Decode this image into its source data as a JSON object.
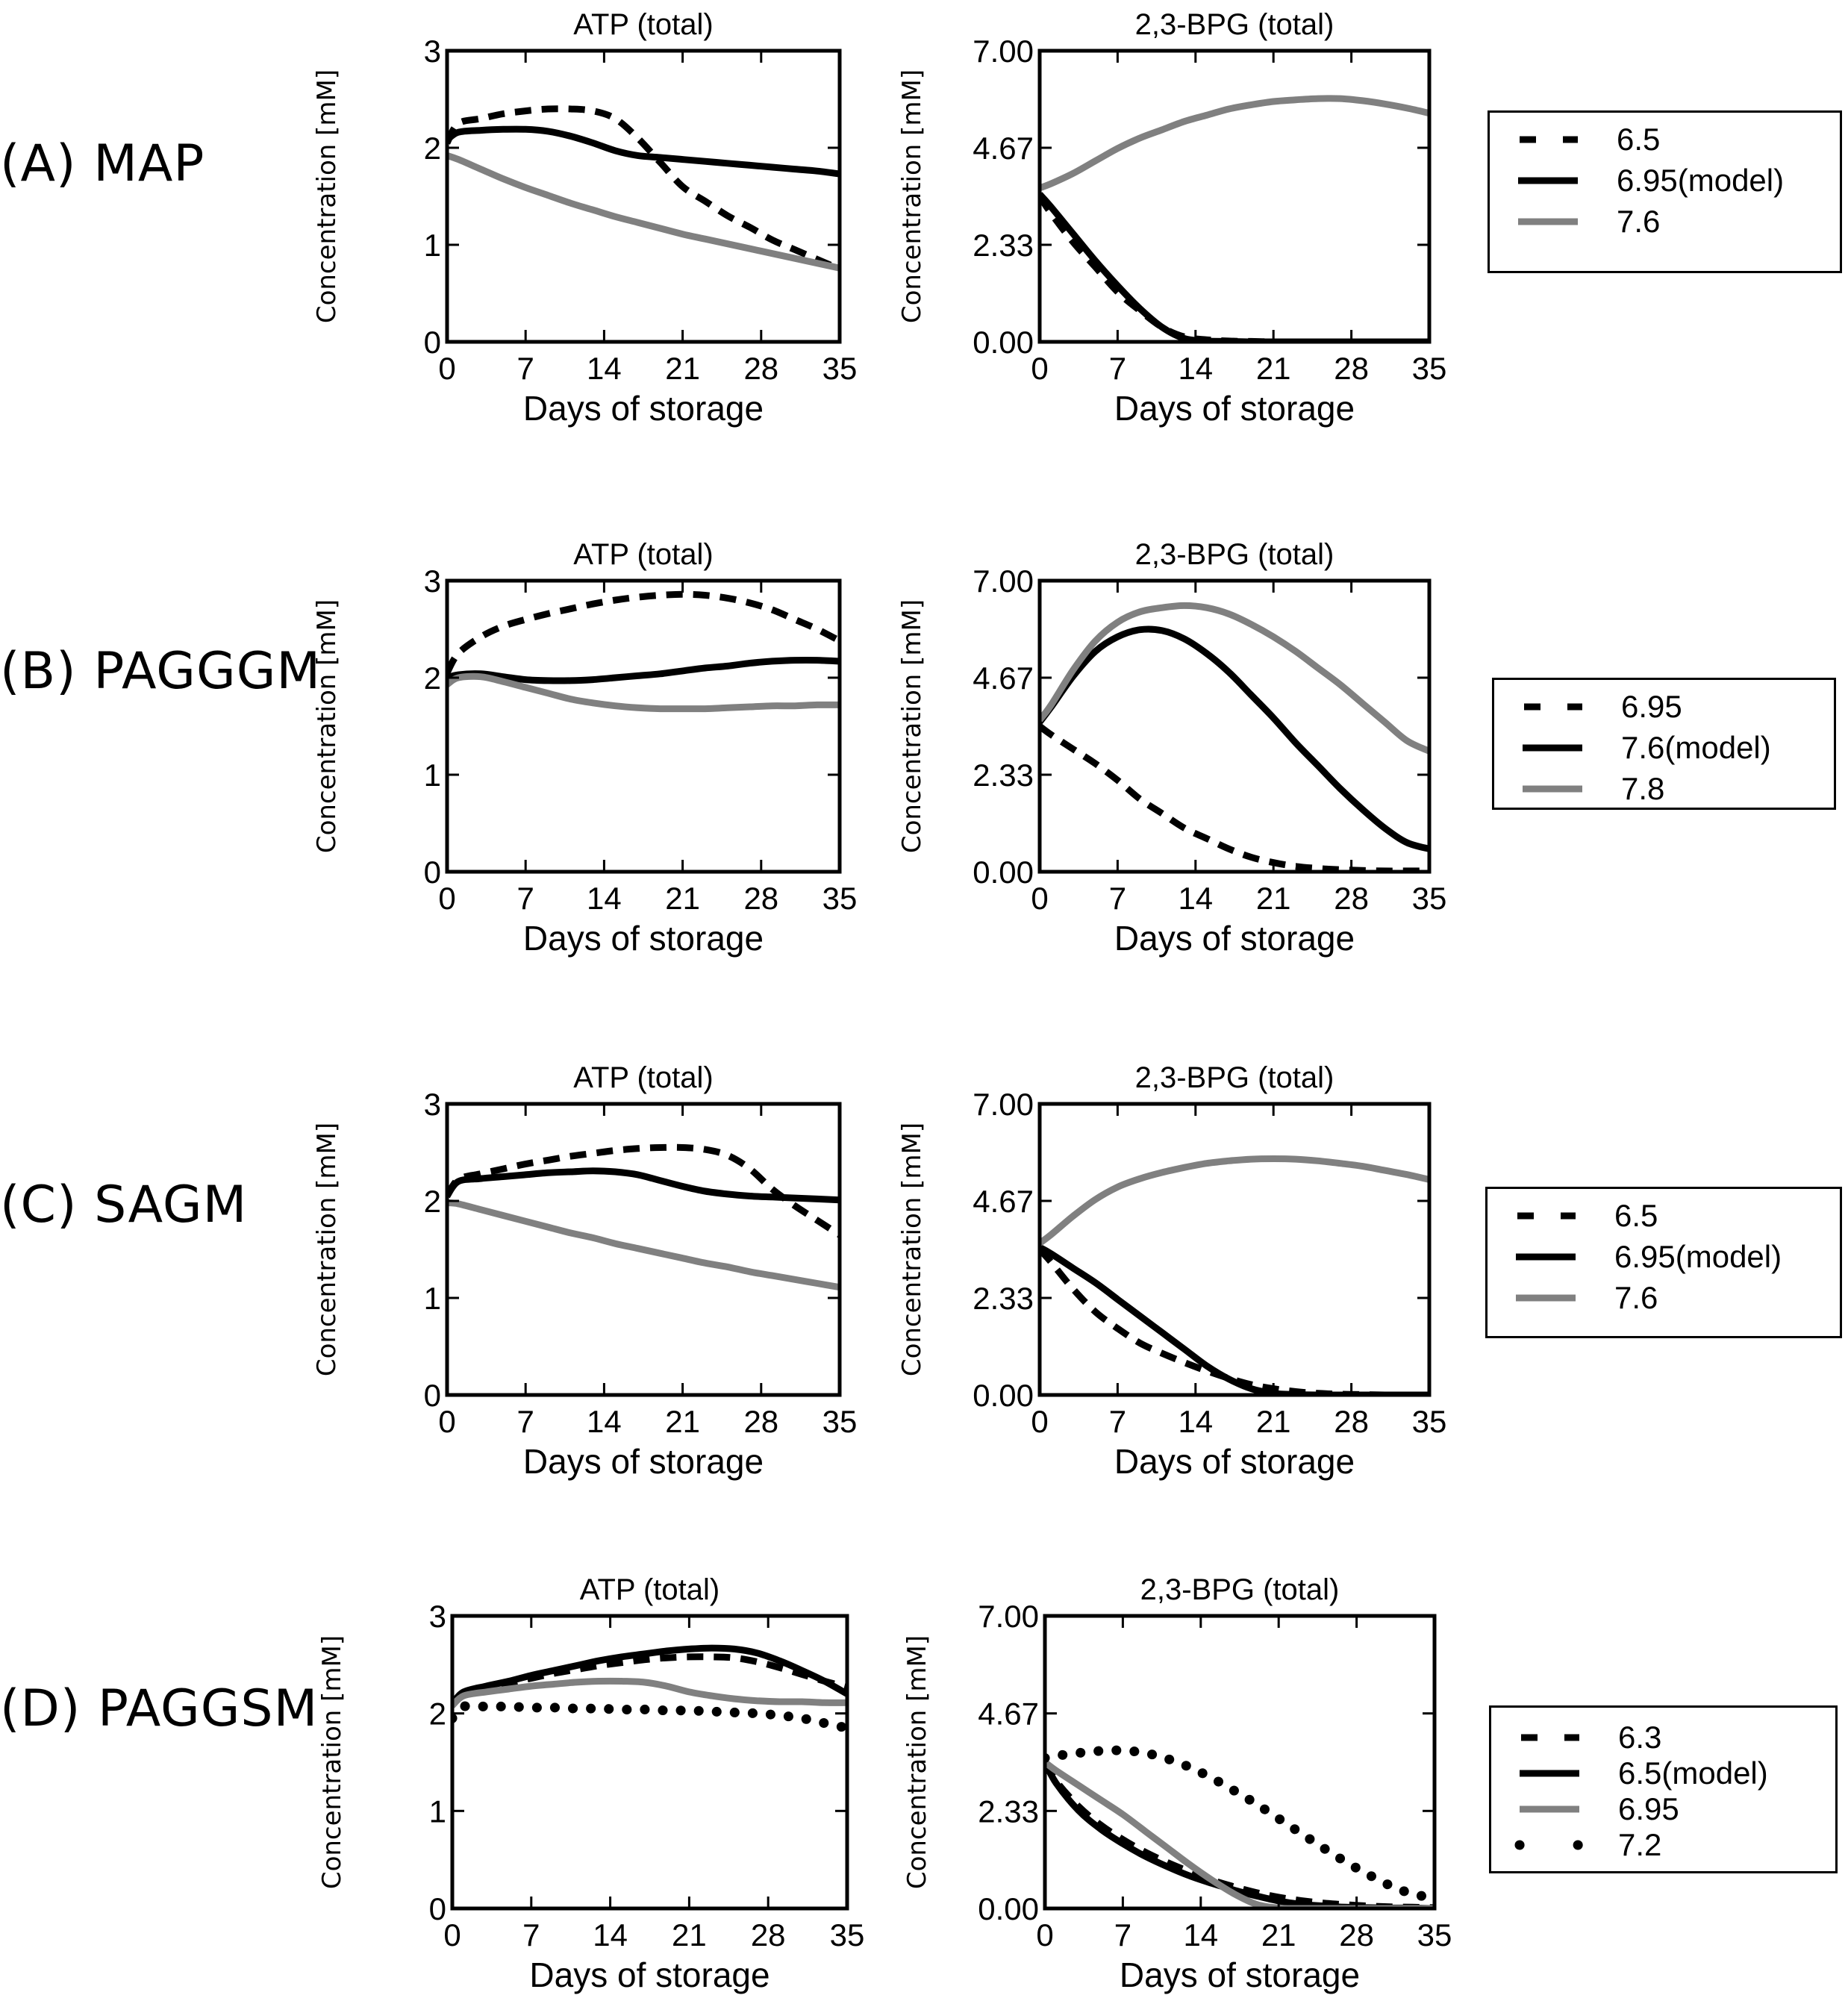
{
  "colors": {
    "black": "#000000",
    "gray": "#808080"
  },
  "chart_data": [
    {
      "type": "line",
      "panel": "A",
      "row_label": "(A) MAP",
      "title": "ATP (total)",
      "xlabel": "Days of storage",
      "ylabel": "Concentration [mM]",
      "xlim": [
        0,
        35
      ],
      "ylim": [
        0,
        3
      ],
      "xticks": [
        "0",
        "7",
        "14",
        "21",
        "28",
        "35"
      ],
      "yticks": [
        "0",
        "1",
        "2",
        "3"
      ],
      "x": [
        0,
        1,
        3,
        5,
        7,
        9,
        11,
        13,
        15,
        17,
        19,
        21,
        23,
        25,
        27,
        29,
        31,
        33,
        35
      ],
      "series": [
        {
          "name": "6.5",
          "style": "dashed",
          "color": "#000000",
          "values": [
            2.05,
            2.25,
            2.3,
            2.35,
            2.38,
            2.4,
            2.4,
            2.38,
            2.3,
            2.1,
            1.85,
            1.6,
            1.45,
            1.3,
            1.18,
            1.05,
            0.95,
            0.85,
            0.75
          ]
        },
        {
          "name": "6.95(model)",
          "style": "solid",
          "color": "#000000",
          "values": [
            2.08,
            2.16,
            2.18,
            2.19,
            2.19,
            2.17,
            2.12,
            2.05,
            1.97,
            1.92,
            1.9,
            1.88,
            1.86,
            1.84,
            1.82,
            1.8,
            1.78,
            1.76,
            1.73
          ]
        },
        {
          "name": "7.6",
          "style": "solid",
          "color": "#808080",
          "values": [
            1.92,
            1.88,
            1.78,
            1.68,
            1.59,
            1.51,
            1.43,
            1.36,
            1.29,
            1.23,
            1.17,
            1.11,
            1.06,
            1.01,
            0.96,
            0.91,
            0.86,
            0.81,
            0.76
          ]
        }
      ]
    },
    {
      "type": "line",
      "panel": "A",
      "title": "2,3-BPG (total)",
      "xlabel": "Days of storage",
      "ylabel": "Concentration [mM]",
      "xlim": [
        0,
        35
      ],
      "ylim": [
        0,
        7
      ],
      "xticks": [
        "0",
        "7",
        "14",
        "21",
        "28",
        "35"
      ],
      "yticks": [
        "0.00",
        "2.33",
        "4.67",
        "7.00"
      ],
      "x": [
        0,
        1,
        3,
        5,
        7,
        9,
        11,
        13,
        15,
        17,
        19,
        21,
        23,
        25,
        27,
        29,
        31,
        33,
        35
      ],
      "legend": [
        "6.5",
        "6.95(model)",
        "7.6"
      ],
      "series": [
        {
          "name": "6.5",
          "style": "dashed",
          "color": "#000000",
          "values": [
            3.5,
            3.1,
            2.4,
            1.8,
            1.2,
            0.75,
            0.35,
            0.12,
            0.05,
            0.02,
            0.01,
            0,
            0,
            0,
            0,
            0,
            0,
            0,
            0
          ]
        },
        {
          "name": "6.95(model)",
          "style": "solid",
          "color": "#000000",
          "values": [
            3.55,
            3.25,
            2.6,
            1.95,
            1.35,
            0.8,
            0.35,
            0.08,
            0.02,
            0.01,
            0,
            0,
            0,
            0,
            0,
            0,
            0,
            0,
            0
          ]
        },
        {
          "name": "7.6",
          "style": "solid",
          "color": "#808080",
          "values": [
            3.7,
            3.8,
            4.05,
            4.35,
            4.65,
            4.9,
            5.1,
            5.3,
            5.45,
            5.6,
            5.7,
            5.78,
            5.82,
            5.85,
            5.85,
            5.8,
            5.72,
            5.62,
            5.5
          ]
        }
      ]
    },
    {
      "type": "line",
      "panel": "B",
      "row_label": "(B) PAGGGM",
      "title": "ATP (total)",
      "xlabel": "Days of storage",
      "ylabel": "Concentration [mM]",
      "xlim": [
        0,
        35
      ],
      "ylim": [
        0,
        3
      ],
      "xticks": [
        "0",
        "7",
        "14",
        "21",
        "28",
        "35"
      ],
      "yticks": [
        "0",
        "1",
        "2",
        "3"
      ],
      "x": [
        0,
        1,
        3,
        5,
        7,
        9,
        11,
        13,
        15,
        17,
        19,
        21,
        23,
        25,
        27,
        29,
        31,
        33,
        35
      ],
      "series": [
        {
          "name": "6.95",
          "style": "dashed",
          "color": "#000000",
          "values": [
            2.05,
            2.25,
            2.42,
            2.53,
            2.6,
            2.66,
            2.71,
            2.76,
            2.8,
            2.83,
            2.85,
            2.86,
            2.85,
            2.82,
            2.77,
            2.7,
            2.6,
            2.5,
            2.38
          ]
        },
        {
          "name": "7.6(model)",
          "style": "solid",
          "color": "#000000",
          "values": [
            2.0,
            2.03,
            2.04,
            2.01,
            1.98,
            1.97,
            1.97,
            1.98,
            2.0,
            2.02,
            2.04,
            2.07,
            2.1,
            2.12,
            2.15,
            2.17,
            2.18,
            2.18,
            2.17
          ]
        },
        {
          "name": "7.8",
          "style": "solid",
          "color": "#808080",
          "values": [
            1.93,
            2.0,
            2.01,
            1.96,
            1.9,
            1.84,
            1.78,
            1.74,
            1.71,
            1.69,
            1.68,
            1.68,
            1.68,
            1.69,
            1.7,
            1.71,
            1.71,
            1.72,
            1.72
          ]
        }
      ]
    },
    {
      "type": "line",
      "panel": "B",
      "title": "2,3-BPG (total)",
      "xlabel": "Days of storage",
      "ylabel": "Concentration [mM]",
      "xlim": [
        0,
        35
      ],
      "ylim": [
        0,
        7
      ],
      "xticks": [
        "0",
        "7",
        "14",
        "21",
        "28",
        "35"
      ],
      "yticks": [
        "0.00",
        "2.33",
        "4.67",
        "7.00"
      ],
      "x": [
        0,
        1,
        3,
        5,
        7,
        9,
        11,
        13,
        15,
        17,
        19,
        21,
        23,
        25,
        27,
        29,
        31,
        33,
        35
      ],
      "legend": [
        "6.95",
        "7.6(model)",
        "7.8"
      ],
      "series": [
        {
          "name": "6.95",
          "style": "dashed",
          "color": "#000000",
          "values": [
            3.5,
            3.3,
            2.95,
            2.6,
            2.2,
            1.75,
            1.4,
            1.05,
            0.8,
            0.55,
            0.35,
            0.22,
            0.13,
            0.08,
            0.05,
            0.03,
            0.02,
            0.02,
            0.02
          ]
        },
        {
          "name": "7.6(model)",
          "style": "solid",
          "color": "#000000",
          "values": [
            3.6,
            3.95,
            4.7,
            5.3,
            5.65,
            5.82,
            5.8,
            5.6,
            5.25,
            4.8,
            4.25,
            3.7,
            3.1,
            2.55,
            2.0,
            1.5,
            1.05,
            0.7,
            0.55
          ]
        },
        {
          "name": "7.8",
          "style": "solid",
          "color": "#808080",
          "values": [
            3.65,
            4.0,
            4.85,
            5.55,
            6.0,
            6.25,
            6.35,
            6.4,
            6.35,
            6.2,
            5.95,
            5.65,
            5.3,
            4.9,
            4.5,
            4.05,
            3.6,
            3.15,
            2.9
          ]
        }
      ]
    },
    {
      "type": "line",
      "panel": "C",
      "row_label": "(C) SAGM",
      "title": "ATP (total)",
      "xlabel": "Days of storage",
      "ylabel": "Concentration [mM]",
      "xlim": [
        0,
        35
      ],
      "ylim": [
        0,
        3
      ],
      "xticks": [
        "0",
        "7",
        "14",
        "21",
        "28",
        "35"
      ],
      "yticks": [
        "0",
        "1",
        "2",
        "3"
      ],
      "x": [
        0,
        1,
        3,
        5,
        7,
        9,
        11,
        13,
        15,
        17,
        19,
        21,
        23,
        25,
        27,
        29,
        31,
        33,
        35
      ],
      "series": [
        {
          "name": "6.5",
          "style": "dashed",
          "color": "#000000",
          "values": [
            2.05,
            2.22,
            2.28,
            2.33,
            2.38,
            2.42,
            2.46,
            2.49,
            2.52,
            2.54,
            2.55,
            2.55,
            2.53,
            2.47,
            2.33,
            2.12,
            1.95,
            1.8,
            1.65
          ]
        },
        {
          "name": "6.95(model)",
          "style": "solid",
          "color": "#000000",
          "values": [
            2.05,
            2.2,
            2.23,
            2.25,
            2.27,
            2.29,
            2.3,
            2.31,
            2.3,
            2.27,
            2.21,
            2.15,
            2.1,
            2.07,
            2.05,
            2.04,
            2.03,
            2.02,
            2.01
          ]
        },
        {
          "name": "7.6",
          "style": "solid",
          "color": "#808080",
          "values": [
            1.98,
            1.97,
            1.91,
            1.85,
            1.79,
            1.73,
            1.67,
            1.62,
            1.56,
            1.51,
            1.46,
            1.41,
            1.36,
            1.32,
            1.27,
            1.23,
            1.19,
            1.15,
            1.11
          ]
        }
      ]
    },
    {
      "type": "line",
      "panel": "C",
      "title": "2,3-BPG (total)",
      "xlabel": "Days of storage",
      "ylabel": "Concentration [mM]",
      "xlim": [
        0,
        35
      ],
      "ylim": [
        0,
        7
      ],
      "xticks": [
        "0",
        "7",
        "14",
        "21",
        "28",
        "35"
      ],
      "yticks": [
        "0.00",
        "2.33",
        "4.67",
        "7.00"
      ],
      "x": [
        0,
        1,
        3,
        5,
        7,
        9,
        11,
        13,
        15,
        17,
        19,
        21,
        23,
        25,
        27,
        29,
        31,
        33,
        35
      ],
      "legend": [
        "6.5",
        "6.95(model)",
        "7.6"
      ],
      "series": [
        {
          "name": "6.5",
          "style": "dashed",
          "color": "#000000",
          "values": [
            3.5,
            3.2,
            2.55,
            2.0,
            1.6,
            1.25,
            1.0,
            0.78,
            0.58,
            0.4,
            0.25,
            0.15,
            0.08,
            0.04,
            0.02,
            0.01,
            0,
            0,
            0
          ]
        },
        {
          "name": "6.95(model)",
          "style": "solid",
          "color": "#000000",
          "values": [
            3.55,
            3.4,
            3.05,
            2.7,
            2.3,
            1.9,
            1.5,
            1.1,
            0.7,
            0.38,
            0.15,
            0.04,
            0.01,
            0,
            0,
            0,
            0,
            0,
            0
          ]
        },
        {
          "name": "7.6",
          "style": "solid",
          "color": "#808080",
          "values": [
            3.65,
            3.85,
            4.3,
            4.7,
            5.0,
            5.2,
            5.35,
            5.47,
            5.57,
            5.63,
            5.67,
            5.68,
            5.67,
            5.63,
            5.57,
            5.5,
            5.4,
            5.3,
            5.18
          ]
        }
      ]
    },
    {
      "type": "line",
      "panel": "D",
      "row_label": "(D) PAGGSM",
      "title": "ATP (total)",
      "xlabel": "Days of storage",
      "ylabel": "Concentration [mM]",
      "xlim": [
        0,
        35
      ],
      "ylim": [
        0,
        3
      ],
      "xticks": [
        "0",
        "7",
        "14",
        "21",
        "28",
        "35"
      ],
      "yticks": [
        "0",
        "1",
        "2",
        "3"
      ],
      "x": [
        0,
        1,
        3,
        5,
        7,
        9,
        11,
        13,
        15,
        17,
        19,
        21,
        23,
        25,
        27,
        29,
        31,
        33,
        35
      ],
      "series": [
        {
          "name": "6.3",
          "style": "dashed",
          "color": "#000000",
          "values": [
            2.1,
            2.2,
            2.26,
            2.31,
            2.36,
            2.41,
            2.45,
            2.49,
            2.52,
            2.55,
            2.57,
            2.58,
            2.58,
            2.57,
            2.53,
            2.47,
            2.4,
            2.33,
            2.27
          ]
        },
        {
          "name": "6.5(model)",
          "style": "solid",
          "color": "#000000",
          "values": [
            2.1,
            2.22,
            2.28,
            2.33,
            2.39,
            2.44,
            2.49,
            2.54,
            2.58,
            2.61,
            2.64,
            2.66,
            2.67,
            2.66,
            2.62,
            2.54,
            2.44,
            2.33,
            2.2
          ]
        },
        {
          "name": "6.95",
          "style": "solid",
          "color": "#808080",
          "values": [
            2.08,
            2.18,
            2.22,
            2.25,
            2.28,
            2.3,
            2.32,
            2.33,
            2.33,
            2.32,
            2.28,
            2.22,
            2.18,
            2.15,
            2.13,
            2.12,
            2.12,
            2.11,
            2.11
          ]
        },
        {
          "name": "7.2",
          "style": "dotted",
          "color": "#000000",
          "values": [
            1.95,
            2.07,
            2.07,
            2.07,
            2.06,
            2.06,
            2.05,
            2.05,
            2.04,
            2.04,
            2.03,
            2.03,
            2.02,
            2.01,
            2.0,
            1.98,
            1.95,
            1.9,
            1.85
          ]
        }
      ]
    },
    {
      "type": "line",
      "panel": "D",
      "title": "2,3-BPG (total)",
      "xlabel": "Days of storage",
      "ylabel": "Concentration [mM]",
      "xlim": [
        0,
        35
      ],
      "ylim": [
        0,
        7
      ],
      "xticks": [
        "0",
        "7",
        "14",
        "21",
        "28",
        "35"
      ],
      "yticks": [
        "0.00",
        "2.33",
        "4.67",
        "7.00"
      ],
      "x": [
        0,
        1,
        3,
        5,
        7,
        9,
        11,
        13,
        15,
        17,
        19,
        21,
        23,
        25,
        27,
        29,
        31,
        33,
        35
      ],
      "legend": [
        "6.3",
        "6.5(model)",
        "6.95",
        "7.2"
      ],
      "series": [
        {
          "name": "6.3",
          "style": "dashed",
          "color": "#000000",
          "values": [
            3.5,
            3.05,
            2.45,
            2.0,
            1.65,
            1.35,
            1.1,
            0.88,
            0.68,
            0.52,
            0.38,
            0.27,
            0.19,
            0.13,
            0.09,
            0.06,
            0.04,
            0.03,
            0.02
          ]
        },
        {
          "name": "6.5(model)",
          "style": "solid",
          "color": "#000000",
          "values": [
            3.5,
            3.0,
            2.35,
            1.9,
            1.55,
            1.25,
            1.0,
            0.78,
            0.6,
            0.44,
            0.3,
            0.18,
            0.1,
            0.06,
            0.03,
            0.02,
            0.01,
            0.01,
            0
          ]
        },
        {
          "name": "6.95",
          "style": "solid",
          "color": "#808080",
          "values": [
            3.5,
            3.3,
            2.95,
            2.6,
            2.25,
            1.85,
            1.45,
            1.05,
            0.68,
            0.35,
            0.1,
            0.01,
            0,
            0,
            0,
            0,
            0,
            0,
            0
          ]
        },
        {
          "name": "7.2",
          "style": "dotted",
          "color": "#000000",
          "values": [
            3.6,
            3.65,
            3.72,
            3.77,
            3.78,
            3.72,
            3.58,
            3.38,
            3.12,
            2.82,
            2.5,
            2.15,
            1.8,
            1.45,
            1.12,
            0.82,
            0.55,
            0.35,
            0.25
          ]
        }
      ]
    }
  ]
}
